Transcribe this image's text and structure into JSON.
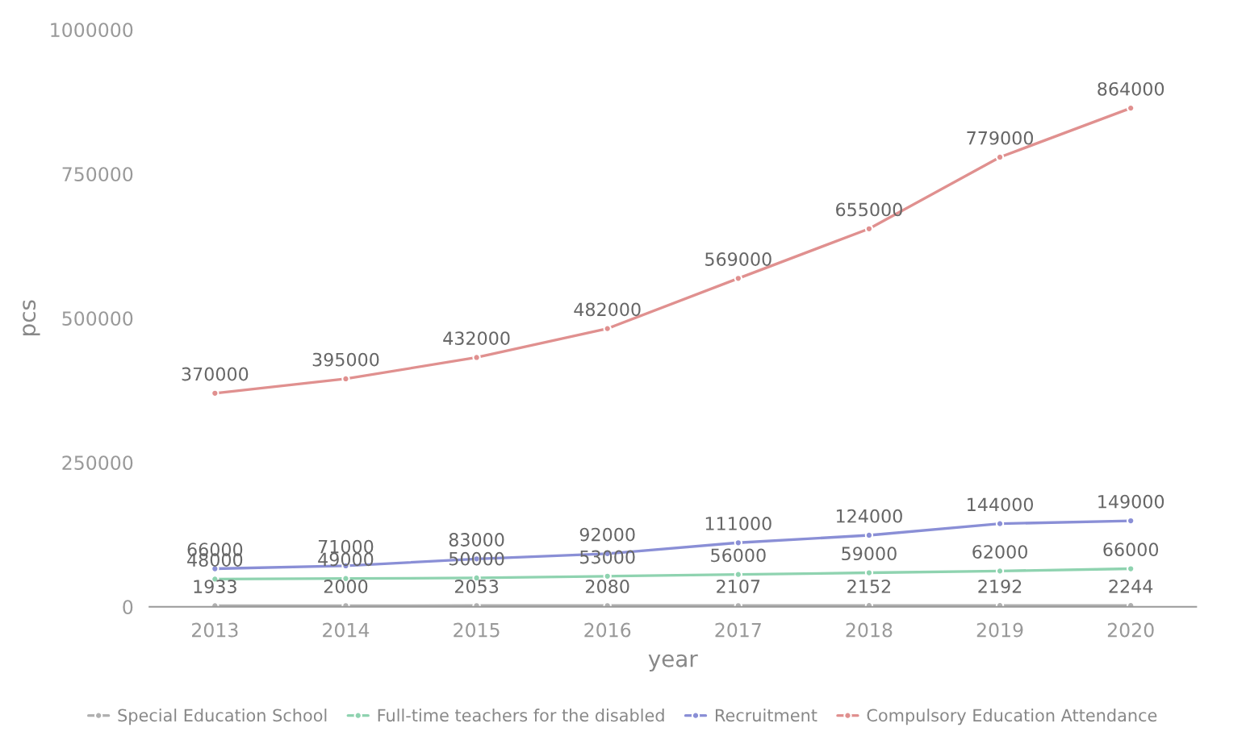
{
  "chart_data": {
    "type": "line",
    "xlabel": "year",
    "ylabel": "pcs",
    "categories": [
      "2013",
      "2014",
      "2015",
      "2016",
      "2017",
      "2018",
      "2019",
      "2020"
    ],
    "series": [
      {
        "name": "Special Education School",
        "color": "#b0b0b0",
        "values": [
          1933,
          2000,
          2053,
          2080,
          2107,
          2152,
          2192,
          2244
        ]
      },
      {
        "name": "Full-time teachers for the disabled",
        "color": "#8fd3b0",
        "values": [
          48000,
          49000,
          50000,
          53000,
          56000,
          59000,
          62000,
          66000
        ]
      },
      {
        "name": "Recruitment",
        "color": "#8a8fd6",
        "values": [
          66000,
          71000,
          83000,
          92000,
          111000,
          124000,
          144000,
          149000
        ]
      },
      {
        "name": "Compulsory Education Attendance",
        "color": "#e0908f",
        "values": [
          370000,
          395000,
          432000,
          482000,
          569000,
          655000,
          779000,
          864000
        ]
      }
    ],
    "ylim": [
      0,
      1000000
    ],
    "yticks": [
      0,
      250000,
      500000,
      750000,
      1000000
    ],
    "data_labels": true,
    "grid": false,
    "legend": "bottom",
    "marker": "circle",
    "line_style": "solid"
  }
}
